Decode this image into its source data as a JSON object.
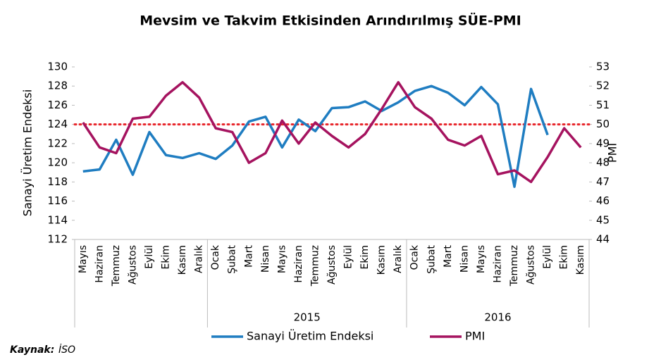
{
  "chart_data": {
    "type": "line",
    "title": "Mevsim ve Takvim Etkisinden Arındırılmış SÜE-PMI",
    "y_label": "Sanayi Üretim Endeksi",
    "y2_label": "PMI",
    "category_groups": [
      {
        "label": null,
        "categories": [
          "Mayıs",
          "Haziran",
          "Temmuz",
          "Ağustos",
          "Eylül",
          "Ekim",
          "Kasım",
          "Aralık"
        ]
      },
      {
        "label": "2015",
        "categories": [
          "Ocak",
          "Şubat",
          "Mart",
          "Nisan",
          "Mayıs",
          "Haziran",
          "Temmuz",
          "Ağustos",
          "Eylül",
          "Ekim",
          "Kasım",
          "Aralık"
        ]
      },
      {
        "label": "2016",
        "categories": [
          "Ocak",
          "Şubat",
          "Mart",
          "Nisan",
          "Mayıs",
          "Haziran",
          "Temmuz",
          "Ağustos",
          "Eylül",
          "Ekim",
          "Kasım"
        ]
      }
    ],
    "series": [
      {
        "name": "Sanayi Üretim Endeksi",
        "color": "#1f7dc1",
        "axis": "y",
        "values": [
          119.1,
          119.3,
          122.4,
          118.75,
          123.2,
          120.8,
          120.5,
          121.0,
          120.4,
          121.8,
          124.3,
          124.8,
          121.6,
          124.5,
          123.3,
          125.7,
          125.8,
          126.4,
          125.4,
          126.3,
          127.5,
          128.0,
          127.3,
          126.0,
          127.9,
          126.1,
          117.5,
          127.7,
          122.9,
          null,
          null
        ]
      },
      {
        "name": "PMI",
        "color": "#a5135f",
        "axis": "y2",
        "values": [
          50.1,
          48.8,
          48.5,
          50.3,
          50.4,
          51.5,
          52.2,
          51.4,
          49.8,
          49.6,
          48.0,
          48.5,
          50.2,
          49.0,
          50.1,
          49.4,
          48.8,
          49.5,
          50.8,
          52.2,
          50.9,
          50.3,
          49.2,
          48.9,
          49.4,
          47.4,
          47.6,
          47.0,
          48.3,
          49.8,
          48.8
        ]
      }
    ],
    "reference_line": {
      "value": 50,
      "axis": "y2",
      "color": "#e8262b"
    },
    "ylim": [
      112,
      130
    ],
    "yticks": [
      112,
      114,
      116,
      118,
      120,
      122,
      124,
      126,
      128,
      130
    ],
    "y2lim": [
      44,
      53
    ],
    "y2ticks": [
      44,
      45,
      46,
      47,
      48,
      49,
      50,
      51,
      52,
      53
    ],
    "legend": "bottom",
    "source": {
      "label": "Kaynak:",
      "text": "İSO"
    }
  }
}
